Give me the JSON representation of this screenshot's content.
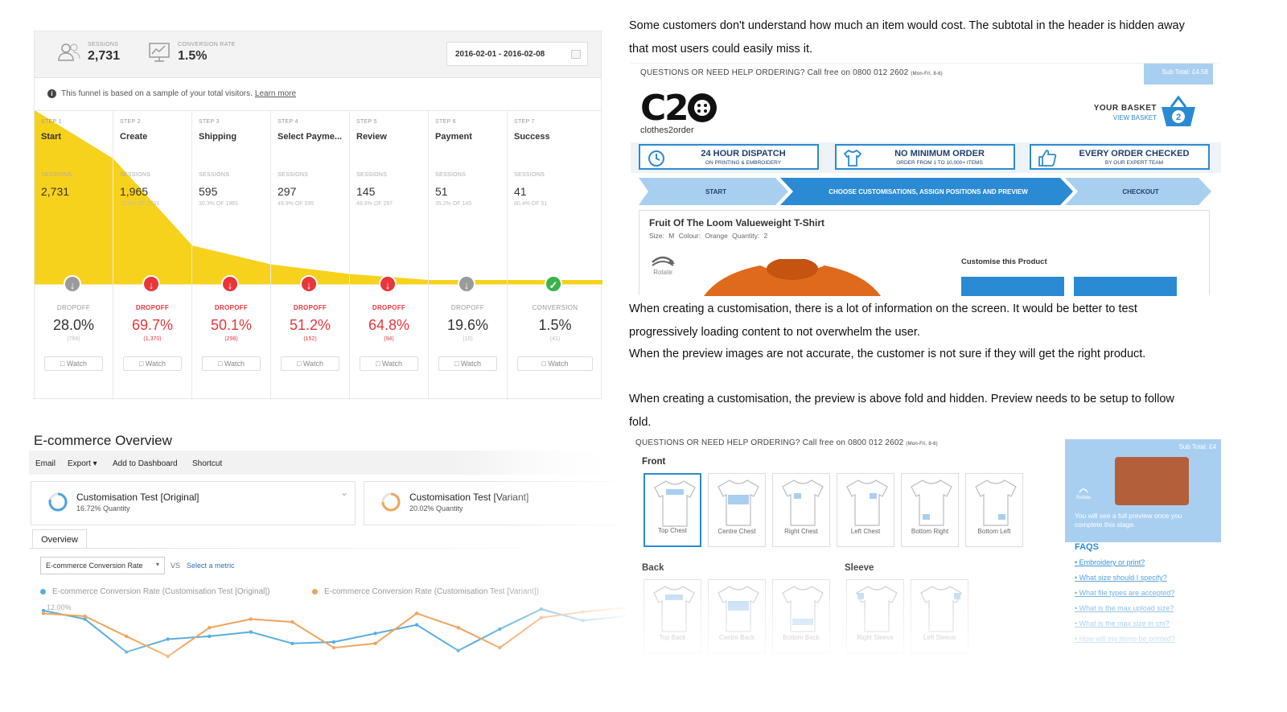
{
  "funnel": {
    "stats": [
      {
        "label": "SESSIONS",
        "value": "2,731",
        "icon": "users-icon"
      },
      {
        "label": "CONVERSION RATE",
        "value": "1.5%",
        "icon": "chart-icon"
      }
    ],
    "date_range": "2016-02-01 - 2016-02-08",
    "notice": "This funnel is based on a sample of your total visitors.",
    "notice_link": "Learn more",
    "steps": [
      {
        "num": "STEP 1",
        "name": "Start",
        "sessions_label": "SESSIONS",
        "sessions": "2,731",
        "sessions_pct": "",
        "drop_label": "DROPOFF",
        "drop_pct": "28.0%",
        "drop_count": "(766)",
        "status": "grey",
        "watch": "Watch"
      },
      {
        "num": "STEP 2",
        "name": "Create",
        "sessions_label": "SESSIONS",
        "sessions": "1,965",
        "sessions_pct": "72.0% OF 2731",
        "drop_label": "DROPOFF",
        "drop_pct": "69.7%",
        "drop_count": "(1,370)",
        "status": "red",
        "watch": "Watch"
      },
      {
        "num": "STEP 3",
        "name": "Shipping",
        "sessions_label": "SESSIONS",
        "sessions": "595",
        "sessions_pct": "30.3% OF 1965",
        "drop_label": "DROPOFF",
        "drop_pct": "50.1%",
        "drop_count": "(298)",
        "status": "red",
        "watch": "Watch"
      },
      {
        "num": "STEP 4",
        "name": "Select Payme...",
        "sessions_label": "SESSIONS",
        "sessions": "297",
        "sessions_pct": "49.9% OF 595",
        "drop_label": "DROPOFF",
        "drop_pct": "51.2%",
        "drop_count": "(152)",
        "status": "red",
        "watch": "Watch"
      },
      {
        "num": "STEP 5",
        "name": "Review",
        "sessions_label": "SESSIONS",
        "sessions": "145",
        "sessions_pct": "48.8% OF 297",
        "drop_label": "DROPOFF",
        "drop_pct": "64.8%",
        "drop_count": "(94)",
        "status": "red",
        "watch": "Watch"
      },
      {
        "num": "STEP 6",
        "name": "Payment",
        "sessions_label": "SESSIONS",
        "sessions": "51",
        "sessions_pct": "35.2% OF 145",
        "drop_label": "DROPOFF",
        "drop_pct": "19.6%",
        "drop_count": "(10)",
        "status": "grey",
        "watch": "Watch"
      },
      {
        "num": "STEP 7",
        "name": "Success",
        "sessions_label": "SESSIONS",
        "sessions": "41",
        "sessions_pct": "80.4% OF 51",
        "drop_label": "CONVERSION",
        "drop_pct": "1.5%",
        "drop_count": "(41)",
        "status": "green",
        "watch": "Watch"
      }
    ],
    "colors": {
      "fill": "#f7d21c",
      "red": "#e8363b",
      "green": "#38b54a",
      "grey": "#9a9a9a"
    }
  },
  "ecommerce": {
    "title": "E-commerce Overview",
    "toolbar": [
      "Email",
      "Export ▾",
      "Add to Dashboard",
      "Shortcut"
    ],
    "segments": [
      {
        "name": "Customisation Test [Original]",
        "sub": "16.72% Quantity",
        "color": "#4aa3df"
      },
      {
        "name": "Customisation Test [Variant]",
        "sub": "20.02% Quantity",
        "color": "#f0a45a"
      }
    ],
    "tab": "Overview",
    "metric": "E-commerce Conversion Rate",
    "vs": "VS",
    "select_metric": "Select a metric",
    "legend": [
      {
        "name": "E-commerce Conversion Rate (Customisation Test [Original])",
        "color": "#5aaee0"
      },
      {
        "name": "E-commerce Conversion Rate (Customisation Test [Variant])",
        "color": "#f0a45a"
      }
    ],
    "y_tick": "12.00%"
  },
  "chart_data": {
    "type": "line",
    "ylabel": "",
    "y_tick_labels": [
      "12.00%"
    ],
    "series": [
      {
        "name": "E-commerce Conversion Rate (Customisation Test [Original])",
        "values": [
          12.0,
          10.8,
          6.2,
          8.0,
          8.4,
          9.0,
          7.4,
          7.6,
          8.8,
          10.0,
          6.4,
          9.4,
          12.2,
          10.6,
          11.2
        ]
      },
      {
        "name": "E-commerce Conversion Rate (Customisation Test [Variant])",
        "values": [
          11.6,
          11.2,
          8.4,
          5.6,
          9.6,
          10.8,
          10.4,
          6.8,
          7.4,
          11.6,
          9.6,
          6.8,
          11.0,
          11.8,
          12.4
        ]
      }
    ]
  },
  "text": {
    "p1": "Some customers don't understand how much an item would cost. The subtotal in the header is hidden away that most users could easily miss it.",
    "p2": "When creating a customisation, there is a lot of information on the screen. It would be better to test progressively loading content to not overwhelm the user.",
    "p3": "When the preview images are not accurate, the customer is not sure if they will get the right product.",
    "p4": "When creating a customisation, the preview is above fold and hidden. Preview needs to be setup to follow fold."
  },
  "site": {
    "help": "QUESTIONS OR NEED HELP ORDERING? Call free on 0800 012 2602",
    "help_small": "(Mon-Fri, 8-6)",
    "subtotal": "Sub Total: £4.58",
    "subtotal2": "Sub Total: £4",
    "logo": "C2O",
    "logo_sub": "clothes2order",
    "basket": "YOUR BASKET",
    "view_basket": "VIEW BASKET",
    "basket_count": "2",
    "usps": [
      {
        "title": "24 HOUR DISPATCH",
        "sub": "ON PRINTING & EMBROIDERY",
        "icon": "clock-icon"
      },
      {
        "title": "NO MINIMUM ORDER",
        "sub": "ORDER FROM 1 TO 10,000+ ITEMS",
        "icon": "tshirt-icon"
      },
      {
        "title": "EVERY ORDER CHECKED",
        "sub": "BY OUR EXPERT TEAM",
        "icon": "thumbs-up-icon"
      }
    ],
    "progress": [
      "START",
      "CHOOSE CUSTOMISATIONS, ASSIGN POSITIONS AND PREVIEW",
      "CHECKOUT"
    ],
    "product_title": "Fruit Of The Loom Valueweight T-Shirt",
    "product_meta": "Size: M   Colour: Orange   Quantity: 2",
    "rotate": "Rotate",
    "customise": "Customise this Product",
    "front": "Front",
    "front_positions": [
      "Top Chest",
      "Centre Chest",
      "Right Chest",
      "Left Chest",
      "Bottom Right",
      "Bottom Left"
    ],
    "back": "Back",
    "back_positions": [
      "Top Back",
      "Centre Back",
      "Bottom Back"
    ],
    "sleeve": "Sleeve",
    "sleeve_positions": [
      "Right Sleeve",
      "Left Sleeve"
    ],
    "preview_msg": "You will see a full preview once you complete this stage.",
    "faqs_title": "FAQS",
    "faqs": [
      "Embroidery or print?",
      "What size should I specify?",
      "What file types are accepted?",
      "What is the max upload size?",
      "What is the max size in cm?",
      "How will my items be printed?"
    ],
    "accent": "#2a8ad4",
    "navy": "#1c3f70"
  }
}
